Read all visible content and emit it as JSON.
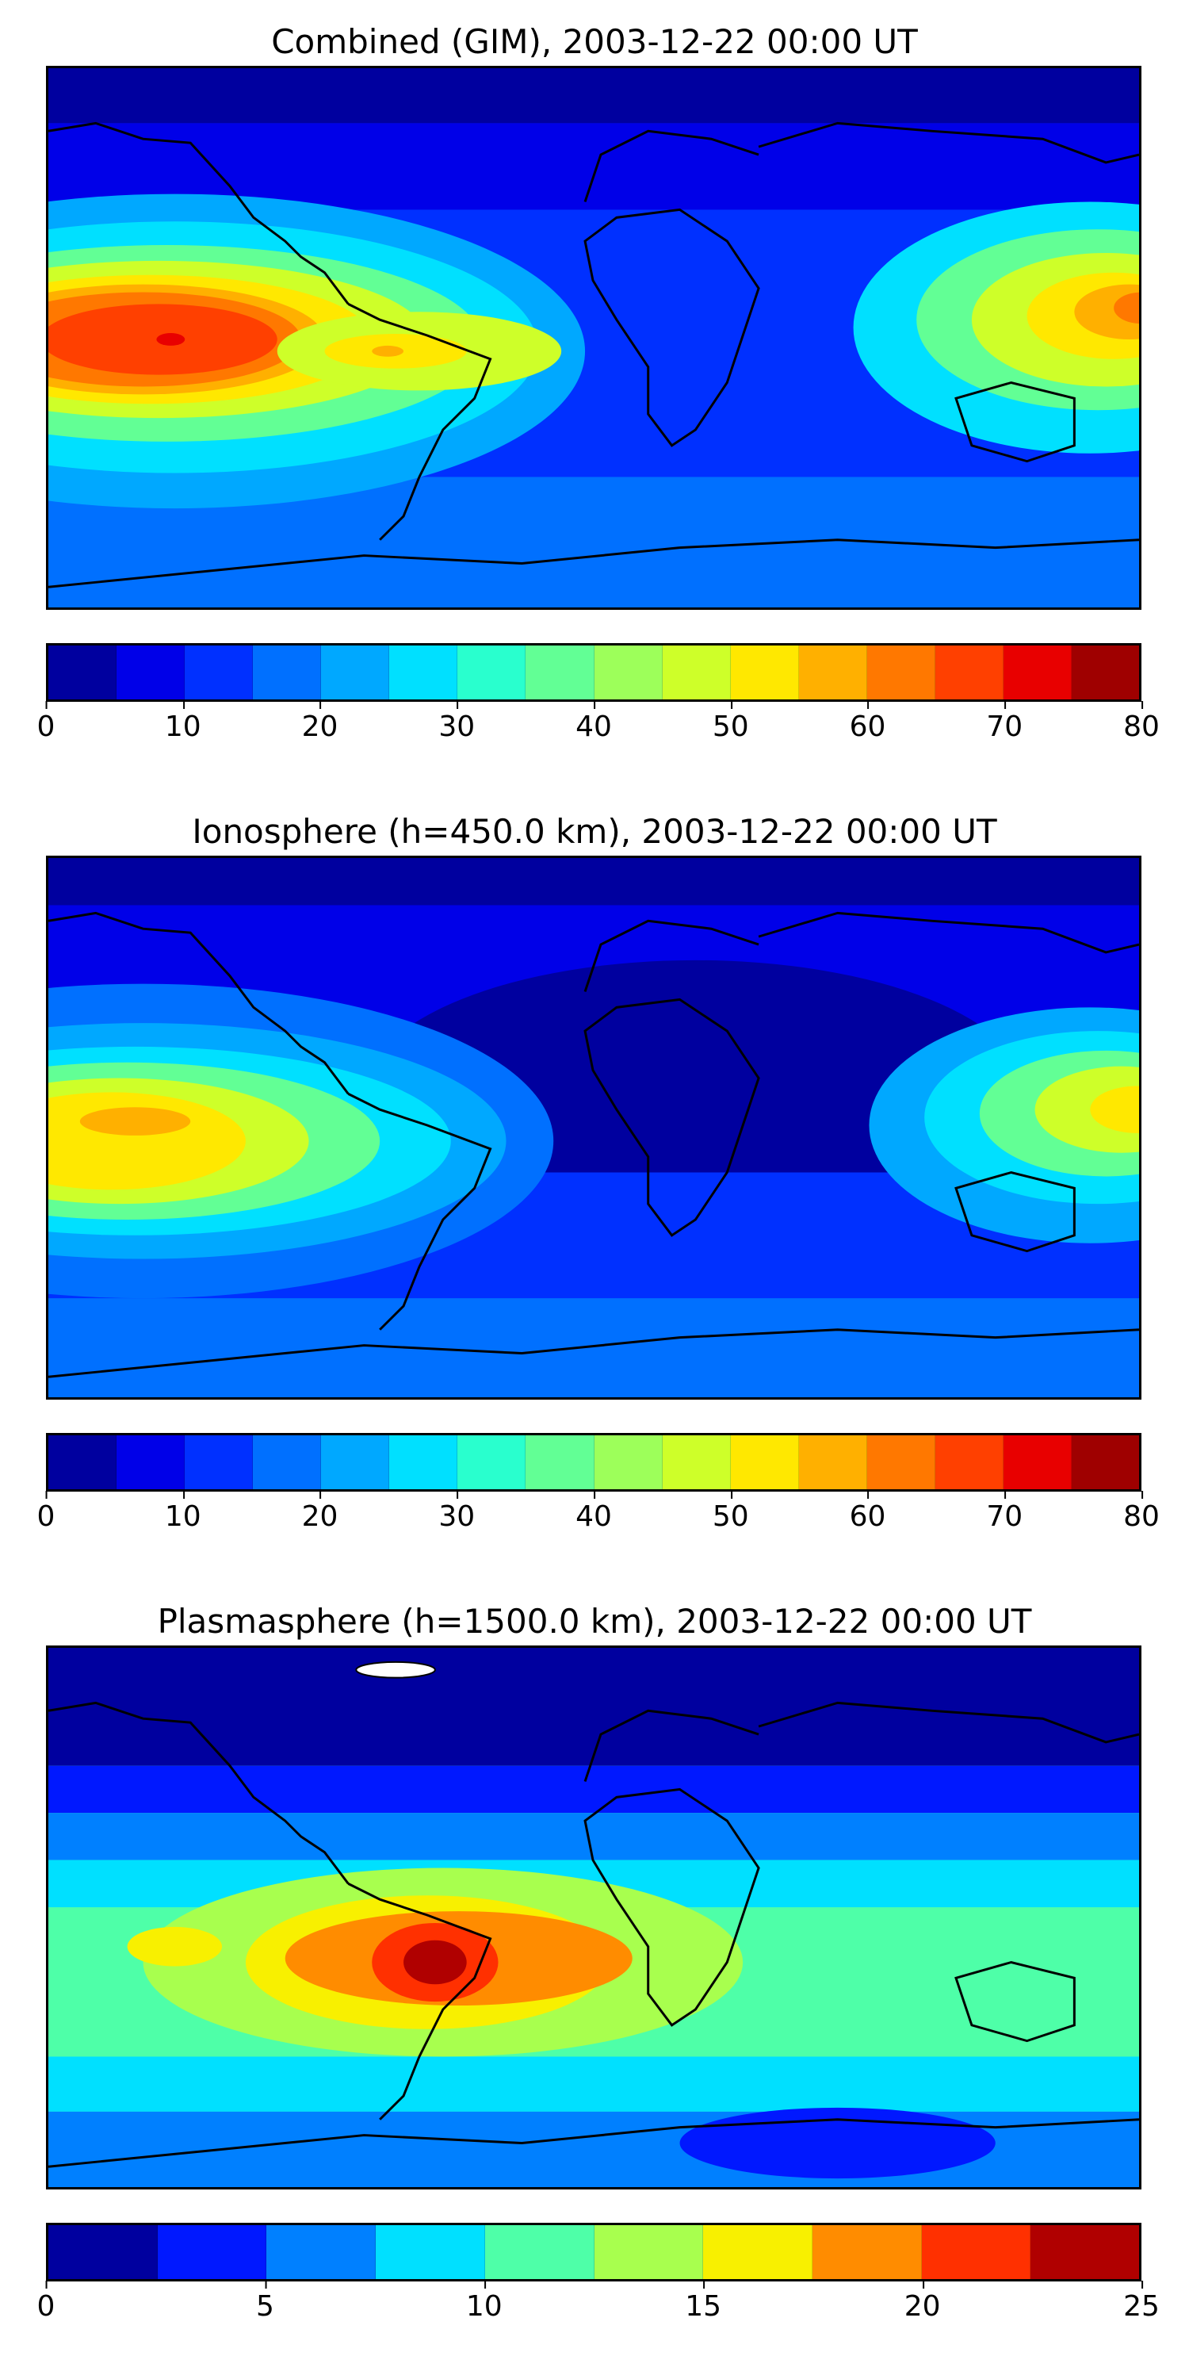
{
  "panels": [
    {
      "title": "Combined (GIM), 2003-12-22 00:00 UT",
      "colorbar": {
        "ticks": [
          "0",
          "10",
          "20",
          "30",
          "40",
          "50",
          "60",
          "70",
          "80"
        ],
        "levels": [
          0,
          5,
          10,
          15,
          20,
          25,
          30,
          35,
          40,
          45,
          50,
          55,
          60,
          65,
          70,
          75,
          80
        ],
        "colors": [
          "#00009f",
          "#0000e8",
          "#0030ff",
          "#0070ff",
          "#00a8ff",
          "#00e0ff",
          "#29ffce",
          "#62ff95",
          "#9dff5a",
          "#ceff29",
          "#ffe800",
          "#ffb000",
          "#ff7800",
          "#ff4000",
          "#e80000",
          "#9f0000"
        ]
      }
    },
    {
      "title": "Ionosphere  (h=450.0 km), 2003-12-22 00:00 UT",
      "colorbar": {
        "ticks": [
          "0",
          "10",
          "20",
          "30",
          "40",
          "50",
          "60",
          "70",
          "80"
        ],
        "levels": [
          0,
          5,
          10,
          15,
          20,
          25,
          30,
          35,
          40,
          45,
          50,
          55,
          60,
          65,
          70,
          75,
          80
        ],
        "colors": [
          "#00009f",
          "#0000e8",
          "#0030ff",
          "#0070ff",
          "#00a8ff",
          "#00e0ff",
          "#29ffce",
          "#62ff95",
          "#9dff5a",
          "#ceff29",
          "#ffe800",
          "#ffb000",
          "#ff7800",
          "#ff4000",
          "#e80000",
          "#9f0000"
        ]
      }
    },
    {
      "title": "Plasmasphere (h=1500.0 km), 2003-12-22 00:00 UT",
      "colorbar": {
        "ticks": [
          "0",
          "5",
          "10",
          "15",
          "20",
          "25"
        ],
        "levels": [
          0,
          2.5,
          5,
          7.5,
          10,
          12.5,
          15,
          17.5,
          20,
          22.5,
          25
        ],
        "colors": [
          "#00009f",
          "#0018ff",
          "#0080ff",
          "#00e0ff",
          "#4effa8",
          "#a8ff4e",
          "#f8f000",
          "#ff8c00",
          "#ff3000",
          "#b00000"
        ]
      }
    }
  ]
}
